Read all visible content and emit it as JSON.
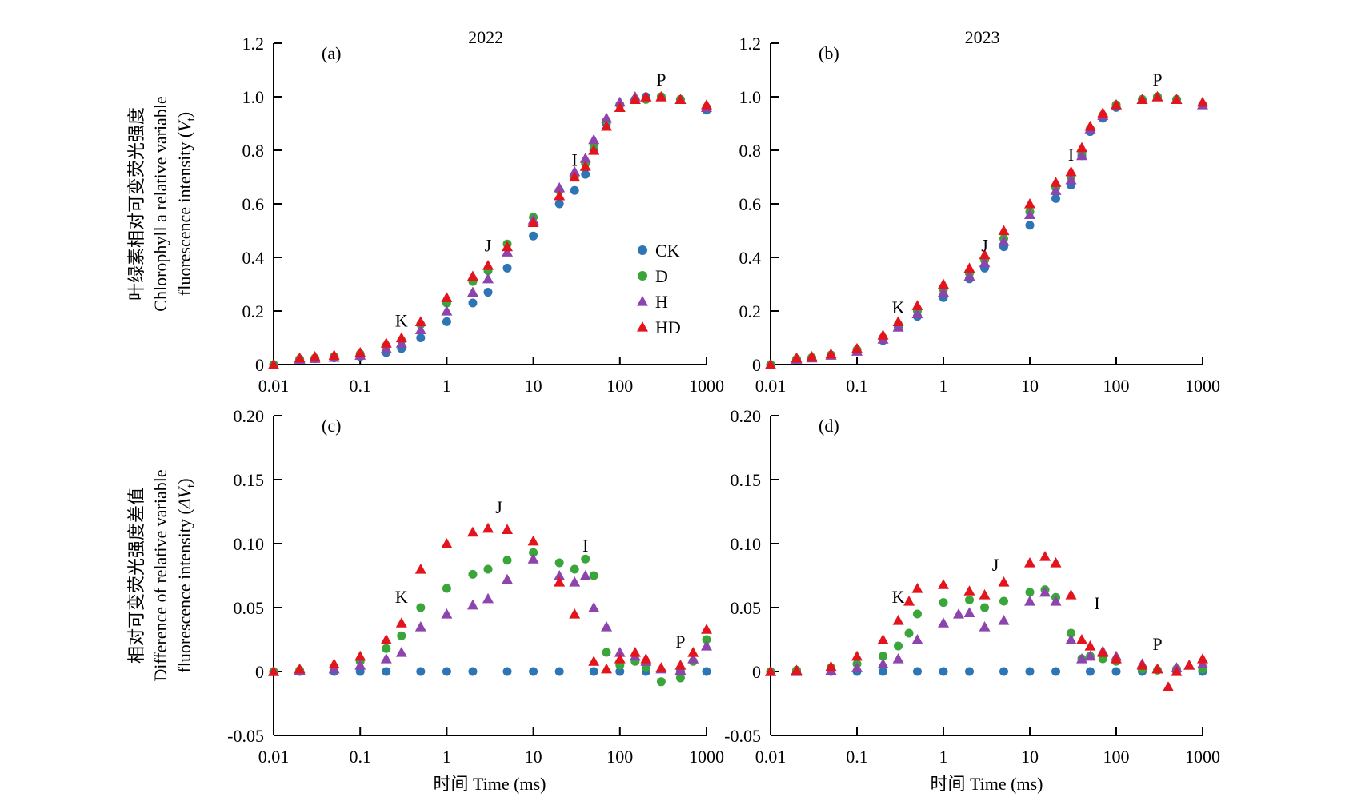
{
  "figure": {
    "y_titles": {
      "top": {
        "cn": "叶绿素相对可变荧光强度",
        "en1": "Chlorophyll a relative variable",
        "en2": "fluorescence intensity (",
        "var": "V",
        "sub": "t",
        "close": ")"
      },
      "bottom": {
        "cn": "相对可变荧光强度差值",
        "en1": "Difference of relative variable",
        "en2": "fluorescence intensity (",
        "var": "ΔV",
        "sub": "t",
        "close": ")"
      }
    },
    "x_title": {
      "cn": "时间",
      "en": "Time (ms)"
    },
    "x_ticks": [
      "0.01",
      "0.1",
      "1",
      "10",
      "100",
      "1000"
    ]
  },
  "legend": {
    "entries": [
      {
        "name": "CK",
        "color": "#2e75b6",
        "marker": "circle"
      },
      {
        "name": "D",
        "color": "#3aa63a",
        "marker": "circle"
      },
      {
        "name": "H",
        "color": "#8e44ad",
        "marker": "triangle"
      },
      {
        "name": "HD",
        "color": "#e3141b",
        "marker": "triangle"
      }
    ]
  },
  "chart_data": [
    {
      "panel": "(a)",
      "title": "2022",
      "type": "scatter",
      "xscale": "log",
      "xlim": [
        0.01,
        1000
      ],
      "ylim": [
        0,
        1.2
      ],
      "y_ticks": [
        "0",
        "0.2",
        "0.4",
        "0.6",
        "0.8",
        "1.0",
        "1.2"
      ],
      "point_labels": [
        {
          "text": "K",
          "x": 0.3,
          "y": 0.1
        },
        {
          "text": "J",
          "x": 3,
          "y": 0.38
        },
        {
          "text": "I",
          "x": 30,
          "y": 0.7
        },
        {
          "text": "P",
          "x": 300,
          "y": 1.0
        }
      ],
      "series": [
        {
          "name": "CK",
          "x": [
            0.01,
            0.02,
            0.03,
            0.05,
            0.1,
            0.2,
            0.3,
            0.5,
            1,
            2,
            3,
            5,
            10,
            20,
            30,
            40,
            50,
            70,
            100,
            150,
            200,
            300,
            500,
            1000
          ],
          "y": [
            0,
            0.02,
            0.022,
            0.025,
            0.03,
            0.045,
            0.06,
            0.1,
            0.16,
            0.23,
            0.27,
            0.36,
            0.48,
            0.6,
            0.65,
            0.71,
            0.8,
            0.9,
            0.97,
            0.99,
            1.0,
            1.0,
            0.99,
            0.95
          ]
        },
        {
          "name": "D",
          "x": [
            0.01,
            0.02,
            0.03,
            0.05,
            0.1,
            0.2,
            0.3,
            0.5,
            1,
            2,
            3,
            5,
            10,
            20,
            30,
            40,
            50,
            70,
            100,
            150,
            200,
            300,
            500,
            1000
          ],
          "y": [
            0,
            0.02,
            0.024,
            0.03,
            0.04,
            0.07,
            0.09,
            0.15,
            0.23,
            0.31,
            0.35,
            0.45,
            0.55,
            0.65,
            0.7,
            0.75,
            0.82,
            0.91,
            0.97,
            0.99,
            0.99,
            1.0,
            0.99,
            0.96
          ]
        },
        {
          "name": "H",
          "x": [
            0.01,
            0.02,
            0.03,
            0.05,
            0.1,
            0.2,
            0.3,
            0.5,
            1,
            2,
            3,
            5,
            10,
            20,
            30,
            40,
            50,
            70,
            100,
            150,
            200,
            300,
            500,
            1000
          ],
          "y": [
            0,
            0.02,
            0.023,
            0.027,
            0.035,
            0.06,
            0.08,
            0.13,
            0.2,
            0.27,
            0.32,
            0.42,
            0.54,
            0.66,
            0.72,
            0.77,
            0.84,
            0.92,
            0.98,
            1.0,
            1.0,
            1.0,
            0.99,
            0.96
          ]
        },
        {
          "name": "HD",
          "x": [
            0.01,
            0.02,
            0.03,
            0.05,
            0.1,
            0.2,
            0.3,
            0.5,
            1,
            2,
            3,
            5,
            10,
            20,
            30,
            40,
            50,
            70,
            100,
            150,
            200,
            300,
            500,
            1000
          ],
          "y": [
            0,
            0.025,
            0.03,
            0.035,
            0.045,
            0.08,
            0.1,
            0.16,
            0.25,
            0.33,
            0.37,
            0.44,
            0.53,
            0.63,
            0.7,
            0.74,
            0.8,
            0.89,
            0.96,
            0.99,
            1.0,
            1.0,
            0.99,
            0.97
          ]
        }
      ]
    },
    {
      "panel": "(b)",
      "title": "2023",
      "type": "scatter",
      "xscale": "log",
      "xlim": [
        0.01,
        1000
      ],
      "ylim": [
        0,
        1.2
      ],
      "y_ticks": [
        "0",
        "0.2",
        "0.4",
        "0.6",
        "0.8",
        "1.0",
        "1.2"
      ],
      "point_labels": [
        {
          "text": "K",
          "x": 0.3,
          "y": 0.15
        },
        {
          "text": "J",
          "x": 3,
          "y": 0.38
        },
        {
          "text": "I",
          "x": 30,
          "y": 0.72
        },
        {
          "text": "P",
          "x": 300,
          "y": 1.0
        }
      ],
      "series": [
        {
          "name": "CK",
          "x": [
            0.01,
            0.02,
            0.03,
            0.05,
            0.1,
            0.2,
            0.3,
            0.5,
            1,
            2,
            3,
            5,
            10,
            20,
            30,
            40,
            50,
            70,
            100,
            200,
            300,
            500,
            1000
          ],
          "y": [
            0,
            0.02,
            0.025,
            0.035,
            0.05,
            0.09,
            0.14,
            0.18,
            0.25,
            0.32,
            0.36,
            0.44,
            0.52,
            0.62,
            0.67,
            0.78,
            0.87,
            0.92,
            0.96,
            0.99,
            1.0,
            0.99,
            0.97
          ]
        },
        {
          "name": "D",
          "x": [
            0.01,
            0.02,
            0.03,
            0.05,
            0.1,
            0.2,
            0.3,
            0.5,
            1,
            2,
            3,
            5,
            10,
            20,
            30,
            40,
            50,
            70,
            100,
            200,
            300,
            500,
            1000
          ],
          "y": [
            0,
            0.02,
            0.026,
            0.036,
            0.055,
            0.1,
            0.15,
            0.2,
            0.28,
            0.34,
            0.39,
            0.47,
            0.57,
            0.66,
            0.7,
            0.79,
            0.88,
            0.93,
            0.97,
            0.99,
            1.0,
            0.99,
            0.97
          ]
        },
        {
          "name": "H",
          "x": [
            0.01,
            0.02,
            0.03,
            0.05,
            0.1,
            0.2,
            0.3,
            0.5,
            1,
            2,
            3,
            5,
            10,
            20,
            30,
            40,
            50,
            70,
            100,
            200,
            300,
            500,
            1000
          ],
          "y": [
            0,
            0.02,
            0.025,
            0.035,
            0.05,
            0.095,
            0.14,
            0.19,
            0.27,
            0.33,
            0.38,
            0.46,
            0.56,
            0.65,
            0.69,
            0.78,
            0.88,
            0.93,
            0.97,
            0.99,
            1.0,
            0.99,
            0.97
          ]
        },
        {
          "name": "HD",
          "x": [
            0.01,
            0.02,
            0.03,
            0.05,
            0.1,
            0.2,
            0.3,
            0.5,
            1,
            2,
            3,
            5,
            10,
            20,
            30,
            40,
            50,
            70,
            100,
            200,
            300,
            500,
            1000
          ],
          "y": [
            0,
            0.025,
            0.03,
            0.04,
            0.06,
            0.11,
            0.16,
            0.22,
            0.3,
            0.36,
            0.41,
            0.5,
            0.6,
            0.68,
            0.72,
            0.81,
            0.89,
            0.94,
            0.97,
            0.99,
            1.0,
            0.99,
            0.98
          ]
        }
      ]
    },
    {
      "panel": "(c)",
      "type": "scatter",
      "xscale": "log",
      "xlim": [
        0.01,
        1000
      ],
      "ylim": [
        -0.05,
        0.2
      ],
      "y_ticks": [
        "-0.05",
        "0",
        "0.05",
        "0.10",
        "0.15",
        "0.20"
      ],
      "point_labels": [
        {
          "text": "K",
          "x": 0.3,
          "y": 0.045
        },
        {
          "text": "J",
          "x": 4,
          "y": 0.115
        },
        {
          "text": "I",
          "x": 40,
          "y": 0.085
        },
        {
          "text": "P",
          "x": 500,
          "y": 0.01
        }
      ],
      "series": [
        {
          "name": "CK",
          "x": [
            0.01,
            0.02,
            0.05,
            0.1,
            0.2,
            0.5,
            1,
            2,
            5,
            10,
            20,
            50,
            100,
            200,
            500,
            1000
          ],
          "y": [
            0,
            0,
            0,
            0,
            0,
            0,
            0,
            0,
            0,
            0,
            0,
            0,
            0,
            0,
            0,
            0
          ]
        },
        {
          "name": "D",
          "x": [
            0.01,
            0.02,
            0.05,
            0.1,
            0.2,
            0.3,
            0.5,
            1,
            2,
            3,
            5,
            10,
            20,
            30,
            40,
            50,
            70,
            100,
            150,
            200,
            300,
            500,
            700,
            1000
          ],
          "y": [
            0,
            0.001,
            0.003,
            0.008,
            0.018,
            0.028,
            0.05,
            0.065,
            0.076,
            0.08,
            0.087,
            0.093,
            0.085,
            0.08,
            0.088,
            0.075,
            0.015,
            0.005,
            0.008,
            0.003,
            -0.008,
            -0.005,
            0.008,
            0.025
          ]
        },
        {
          "name": "H",
          "x": [
            0.01,
            0.02,
            0.05,
            0.1,
            0.2,
            0.3,
            0.5,
            1,
            2,
            3,
            5,
            10,
            20,
            30,
            40,
            50,
            70,
            100,
            150,
            200,
            300,
            500,
            700,
            1000
          ],
          "y": [
            0,
            0.001,
            0.002,
            0.005,
            0.01,
            0.015,
            0.035,
            0.045,
            0.052,
            0.057,
            0.072,
            0.088,
            0.075,
            0.07,
            0.075,
            0.05,
            0.035,
            0.015,
            0.012,
            0.008,
            0.002,
            0.001,
            0.01,
            0.02
          ]
        },
        {
          "name": "HD",
          "x": [
            0.01,
            0.02,
            0.05,
            0.1,
            0.2,
            0.3,
            0.5,
            1,
            2,
            3,
            5,
            10,
            20,
            30,
            50,
            70,
            100,
            150,
            200,
            300,
            500,
            700,
            1000
          ],
          "y": [
            0,
            0.002,
            0.006,
            0.012,
            0.025,
            0.038,
            0.08,
            0.1,
            0.109,
            0.112,
            0.111,
            0.102,
            0.07,
            0.045,
            0.008,
            0.002,
            0.01,
            0.015,
            0.01,
            0.003,
            0.005,
            0.015,
            0.033
          ]
        }
      ]
    },
    {
      "panel": "(d)",
      "type": "scatter",
      "xscale": "log",
      "xlim": [
        0.01,
        1000
      ],
      "ylim": [
        -0.05,
        0.2
      ],
      "y_ticks": [
        "-0.05",
        "0",
        "0.05",
        "0.10",
        "0.15",
        "0.20"
      ],
      "point_labels": [
        {
          "text": "K",
          "x": 0.3,
          "y": 0.045
        },
        {
          "text": "J",
          "x": 4,
          "y": 0.07
        },
        {
          "text": "I",
          "x": 60,
          "y": 0.04
        },
        {
          "text": "P",
          "x": 300,
          "y": 0.008
        }
      ],
      "series": [
        {
          "name": "CK",
          "x": [
            0.01,
            0.02,
            0.05,
            0.1,
            0.2,
            0.5,
            1,
            2,
            5,
            10,
            20,
            50,
            100,
            200,
            500,
            1000
          ],
          "y": [
            0,
            0,
            0,
            0,
            0,
            0,
            0,
            0,
            0,
            0,
            0,
            0,
            0,
            0,
            0,
            0
          ]
        },
        {
          "name": "D",
          "x": [
            0.01,
            0.02,
            0.05,
            0.1,
            0.2,
            0.3,
            0.4,
            0.5,
            1,
            2,
            3,
            5,
            10,
            15,
            20,
            30,
            40,
            50,
            70,
            100,
            200,
            300,
            500,
            1000
          ],
          "y": [
            0,
            0.001,
            0.003,
            0.006,
            0.012,
            0.02,
            0.03,
            0.045,
            0.054,
            0.056,
            0.05,
            0.055,
            0.062,
            0.064,
            0.058,
            0.03,
            0.01,
            0.012,
            0.01,
            0.008,
            0.002,
            0.001,
            0.002,
            0.002
          ]
        },
        {
          "name": "H",
          "x": [
            0.01,
            0.02,
            0.05,
            0.1,
            0.2,
            0.3,
            0.5,
            1,
            1.5,
            2,
            3,
            5,
            10,
            15,
            20,
            30,
            40,
            50,
            70,
            100,
            200,
            300,
            500,
            700,
            1000
          ],
          "y": [
            0,
            0.0,
            0.001,
            0.003,
            0.006,
            0.01,
            0.025,
            0.038,
            0.045,
            0.046,
            0.035,
            0.04,
            0.055,
            0.062,
            0.055,
            0.025,
            0.01,
            0.012,
            0.016,
            0.012,
            0.006,
            0.002,
            0.003,
            0.005,
            0.006
          ]
        },
        {
          "name": "HD",
          "x": [
            0.01,
            0.02,
            0.05,
            0.1,
            0.2,
            0.3,
            0.4,
            0.5,
            1,
            2,
            3,
            5,
            10,
            15,
            20,
            30,
            40,
            50,
            70,
            100,
            200,
            300,
            400,
            500,
            700,
            1000
          ],
          "y": [
            0,
            0.001,
            0.004,
            0.012,
            0.025,
            0.04,
            0.055,
            0.065,
            0.068,
            0.063,
            0.06,
            0.07,
            0.085,
            0.09,
            0.085,
            0.06,
            0.025,
            0.02,
            0.015,
            0.01,
            0.005,
            0.002,
            -0.012,
            0.0,
            0.005,
            0.01
          ]
        }
      ]
    }
  ]
}
